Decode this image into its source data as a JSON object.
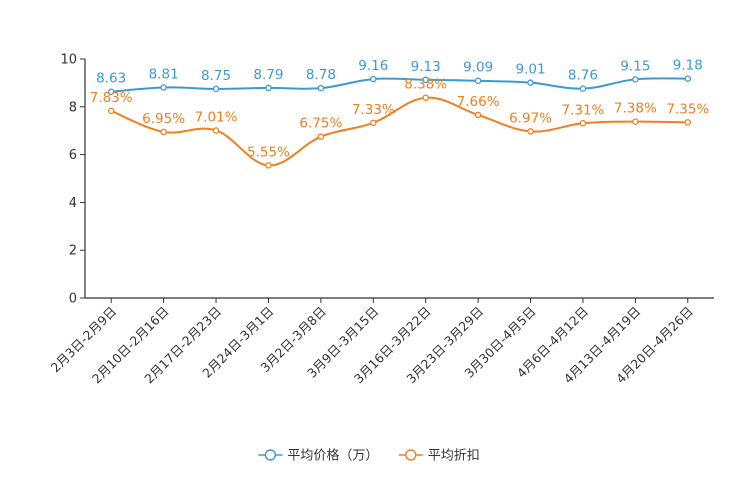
{
  "chart_data": {
    "type": "line",
    "title": "",
    "xlabel": "",
    "ylabel": "",
    "ylim": [
      0,
      10
    ],
    "yticks": [
      0,
      2,
      4,
      6,
      8,
      10
    ],
    "grid": false,
    "legend_position": "bottom-center",
    "categories": [
      "2月3日-2月9日",
      "2月10日-2月16日",
      "2月17日-2月23日",
      "2月24日-3月1日",
      "3月2日-3月8日",
      "3月9日-3月15日",
      "3月16日-3月22日",
      "3月23日-3月29日",
      "3月30日-4月5日",
      "4月6日-4月12日",
      "4月13日-4月19日",
      "4月20日-4月26日"
    ],
    "series": [
      {
        "name": "平均价格（万）",
        "color": "#3b9bd1",
        "values": [
          8.63,
          8.81,
          8.75,
          8.79,
          8.78,
          9.16,
          9.13,
          9.09,
          9.01,
          8.76,
          9.15,
          9.18
        ],
        "labels": [
          "8.63",
          "8.81",
          "8.75",
          "8.79",
          "8.78",
          "9.16",
          "9.13",
          "9.09",
          "9.01",
          "8.76",
          "9.15",
          "9.18"
        ]
      },
      {
        "name": "平均折扣",
        "color": "#f07f1f",
        "values": [
          7.83,
          6.95,
          7.01,
          5.55,
          6.75,
          7.33,
          8.38,
          7.66,
          6.97,
          7.31,
          7.38,
          7.35
        ],
        "labels": [
          "7.83%",
          "6.95%",
          "7.01%",
          "5.55%",
          "6.75%",
          "7.33%",
          "8.38%",
          "7.66%",
          "6.97%",
          "7.31%",
          "7.38%",
          "7.35%"
        ]
      }
    ]
  }
}
